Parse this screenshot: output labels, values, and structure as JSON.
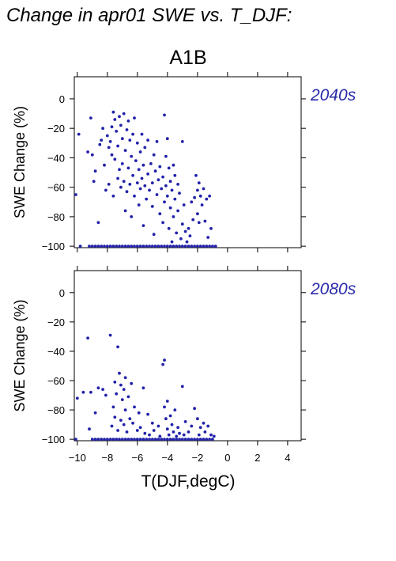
{
  "title": "Change in apr01 SWE vs. T_DJF:",
  "subtitle": "A1B",
  "xlabel": "T(DJF,degC)",
  "ylabel": "SWE Change (%)",
  "point_color": "#2222aa",
  "label_color": "#2a2aaa",
  "chart_data": [
    {
      "type": "scatter",
      "period_label": "2040s",
      "xlim": [
        -10.2,
        4.9
      ],
      "ylim": [
        -101,
        15
      ],
      "xticks": [
        -10,
        -8,
        -6,
        -4,
        -2,
        0,
        2,
        4
      ],
      "yticks": [
        0,
        -20,
        -40,
        -60,
        -80,
        -100
      ],
      "points": [
        [
          -9.8,
          -100
        ],
        [
          -9.2,
          -100
        ],
        [
          -9.0,
          -100
        ],
        [
          -8.8,
          -100
        ],
        [
          -8.6,
          -100
        ],
        [
          -8.4,
          -100
        ],
        [
          -8.2,
          -100
        ],
        [
          -8.0,
          -100
        ],
        [
          -7.8,
          -100
        ],
        [
          -7.6,
          -100
        ],
        [
          -7.4,
          -100
        ],
        [
          -7.2,
          -100
        ],
        [
          -7.0,
          -100
        ],
        [
          -6.8,
          -100
        ],
        [
          -6.6,
          -100
        ],
        [
          -6.4,
          -100
        ],
        [
          -6.2,
          -100
        ],
        [
          -6.0,
          -100
        ],
        [
          -5.8,
          -100
        ],
        [
          -5.6,
          -100
        ],
        [
          -5.4,
          -100
        ],
        [
          -5.2,
          -100
        ],
        [
          -5.0,
          -100
        ],
        [
          -4.8,
          -100
        ],
        [
          -4.6,
          -100
        ],
        [
          -4.4,
          -100
        ],
        [
          -4.2,
          -100
        ],
        [
          -4.0,
          -100
        ],
        [
          -3.8,
          -100
        ],
        [
          -3.6,
          -100
        ],
        [
          -3.4,
          -100
        ],
        [
          -3.2,
          -100
        ],
        [
          -3.0,
          -100
        ],
        [
          -2.8,
          -100
        ],
        [
          -2.6,
          -100
        ],
        [
          -2.4,
          -100
        ],
        [
          -2.2,
          -100
        ],
        [
          -2.0,
          -100
        ],
        [
          -1.8,
          -100
        ],
        [
          -1.6,
          -100
        ],
        [
          -1.4,
          -100
        ],
        [
          -1.2,
          -100
        ],
        [
          -1.0,
          -100
        ],
        [
          -0.8,
          -100
        ],
        [
          -10.1,
          -65
        ],
        [
          -9.9,
          -24
        ],
        [
          -9.3,
          -36
        ],
        [
          -9.1,
          -13
        ],
        [
          -9.0,
          -38
        ],
        [
          -8.9,
          -56
        ],
        [
          -8.8,
          -49
        ],
        [
          -8.6,
          -84
        ],
        [
          -8.5,
          -31
        ],
        [
          -8.4,
          -28
        ],
        [
          -8.3,
          -20
        ],
        [
          -8.2,
          -45
        ],
        [
          -8.1,
          -62
        ],
        [
          -8.0,
          -25
        ],
        [
          -7.9,
          -33
        ],
        [
          -7.9,
          -58
        ],
        [
          -7.8,
          -29
        ],
        [
          -7.7,
          -19
        ],
        [
          -7.7,
          -38
        ],
        [
          -7.6,
          -66
        ],
        [
          -7.6,
          -9
        ],
        [
          -7.5,
          -14
        ],
        [
          -7.5,
          -41
        ],
        [
          -7.4,
          -22
        ],
        [
          -7.3,
          -32
        ],
        [
          -7.3,
          -54
        ],
        [
          -7.2,
          -12
        ],
        [
          -7.2,
          -48
        ],
        [
          -7.1,
          -18
        ],
        [
          -7.1,
          -60
        ],
        [
          -7.0,
          -27
        ],
        [
          -7.0,
          -44
        ],
        [
          -6.9,
          -10
        ],
        [
          -6.9,
          -56
        ],
        [
          -6.8,
          -35
        ],
        [
          -6.8,
          -76
        ],
        [
          -6.7,
          -21
        ],
        [
          -6.7,
          -63
        ],
        [
          -6.6,
          -15
        ],
        [
          -6.6,
          -47
        ],
        [
          -6.5,
          -28
        ],
        [
          -6.5,
          -58
        ],
        [
          -6.4,
          -39
        ],
        [
          -6.4,
          -80
        ],
        [
          -6.3,
          -24
        ],
        [
          -6.3,
          -52
        ],
        [
          -6.2,
          -13
        ],
        [
          -6.2,
          -66
        ],
        [
          -6.1,
          -42
        ],
        [
          -6.0,
          -30
        ],
        [
          -6.0,
          -57
        ],
        [
          -5.9,
          -48
        ],
        [
          -5.9,
          -72
        ],
        [
          -5.8,
          -36
        ],
        [
          -5.8,
          -61
        ],
        [
          -5.7,
          -24
        ],
        [
          -5.7,
          -54
        ],
        [
          -5.6,
          -45
        ],
        [
          -5.6,
          -86
        ],
        [
          -5.5,
          -59
        ],
        [
          -5.5,
          -33
        ],
        [
          -5.4,
          -68
        ],
        [
          -5.3,
          -51
        ],
        [
          -5.3,
          -28
        ],
        [
          -5.2,
          -62
        ],
        [
          -5.1,
          -44
        ],
        [
          -5.0,
          -73
        ],
        [
          -5.0,
          -57
        ],
        [
          -4.9,
          -38
        ],
        [
          -4.9,
          -92
        ],
        [
          -4.8,
          -49
        ],
        [
          -4.7,
          -65
        ],
        [
          -4.7,
          -29
        ],
        [
          -4.6,
          -55
        ],
        [
          -4.5,
          -46
        ],
        [
          -4.5,
          -78
        ],
        [
          -4.4,
          -61
        ],
        [
          -4.3,
          -53
        ],
        [
          -4.3,
          -84
        ],
        [
          -4.2,
          -11
        ],
        [
          -4.2,
          -70
        ],
        [
          -4.1,
          -39
        ],
        [
          -4.1,
          -59
        ],
        [
          -4.0,
          -27
        ],
        [
          -4.0,
          -66
        ],
        [
          -3.9,
          -47
        ],
        [
          -3.9,
          -88
        ],
        [
          -3.8,
          -56
        ],
        [
          -3.8,
          -74
        ],
        [
          -3.7,
          -62
        ],
        [
          -3.7,
          -97
        ],
        [
          -3.6,
          -45
        ],
        [
          -3.6,
          -80
        ],
        [
          -3.5,
          -68
        ],
        [
          -3.5,
          -52
        ],
        [
          -3.4,
          -91
        ],
        [
          -3.3,
          -58
        ],
        [
          -3.3,
          -76
        ],
        [
          -3.2,
          -64
        ],
        [
          -3.1,
          -95
        ],
        [
          -3.0,
          -29
        ],
        [
          -3.0,
          -85
        ],
        [
          -2.9,
          -72
        ],
        [
          -2.8,
          -90
        ],
        [
          -2.7,
          -97
        ],
        [
          -2.6,
          -88
        ],
        [
          -2.5,
          -93
        ],
        [
          -2.4,
          -70
        ],
        [
          -2.3,
          -82
        ],
        [
          -2.2,
          -67
        ],
        [
          -2.1,
          -52
        ],
        [
          -2.0,
          -62
        ],
        [
          -2.0,
          -78
        ],
        [
          -1.9,
          -57
        ],
        [
          -1.9,
          -84
        ],
        [
          -1.8,
          -66
        ],
        [
          -1.7,
          -72
        ],
        [
          -1.6,
          -61
        ],
        [
          -1.5,
          -83
        ],
        [
          -1.4,
          -68
        ],
        [
          -1.3,
          -94
        ],
        [
          -1.2,
          -66
        ],
        [
          -1.1,
          -88
        ]
      ]
    },
    {
      "type": "scatter",
      "period_label": "2080s",
      "xlim": [
        -10.2,
        4.9
      ],
      "ylim": [
        -101,
        15
      ],
      "xticks": [
        -10,
        -8,
        -6,
        -4,
        -2,
        0,
        2,
        4
      ],
      "yticks": [
        0,
        -20,
        -40,
        -60,
        -80,
        -100
      ],
      "points": [
        [
          -10.1,
          -100
        ],
        [
          -9.0,
          -100
        ],
        [
          -8.8,
          -100
        ],
        [
          -8.6,
          -100
        ],
        [
          -8.4,
          -100
        ],
        [
          -8.2,
          -100
        ],
        [
          -8.0,
          -100
        ],
        [
          -7.8,
          -100
        ],
        [
          -7.6,
          -100
        ],
        [
          -7.4,
          -100
        ],
        [
          -7.2,
          -100
        ],
        [
          -7.0,
          -100
        ],
        [
          -6.8,
          -100
        ],
        [
          -6.6,
          -100
        ],
        [
          -6.4,
          -100
        ],
        [
          -6.2,
          -100
        ],
        [
          -6.0,
          -100
        ],
        [
          -5.8,
          -100
        ],
        [
          -5.6,
          -100
        ],
        [
          -5.4,
          -100
        ],
        [
          -5.2,
          -100
        ],
        [
          -5.0,
          -100
        ],
        [
          -4.8,
          -100
        ],
        [
          -4.6,
          -100
        ],
        [
          -4.4,
          -100
        ],
        [
          -4.2,
          -100
        ],
        [
          -4.0,
          -100
        ],
        [
          -3.8,
          -100
        ],
        [
          -3.6,
          -100
        ],
        [
          -3.4,
          -100
        ],
        [
          -3.2,
          -100
        ],
        [
          -3.0,
          -100
        ],
        [
          -2.8,
          -100
        ],
        [
          -2.6,
          -100
        ],
        [
          -2.4,
          -100
        ],
        [
          -2.2,
          -100
        ],
        [
          -2.0,
          -100
        ],
        [
          -1.8,
          -100
        ],
        [
          -1.6,
          -100
        ],
        [
          -1.4,
          -100
        ],
        [
          -1.2,
          -100
        ],
        [
          -1.0,
          -100
        ],
        [
          -10.0,
          -72
        ],
        [
          -9.6,
          -68
        ],
        [
          -9.3,
          -31
        ],
        [
          -9.2,
          -93
        ],
        [
          -9.1,
          -68
        ],
        [
          -8.8,
          -82
        ],
        [
          -8.6,
          -65
        ],
        [
          -8.3,
          -66
        ],
        [
          -8.1,
          -70
        ],
        [
          -7.8,
          -29
        ],
        [
          -7.7,
          -91
        ],
        [
          -7.6,
          -78
        ],
        [
          -7.5,
          -61
        ],
        [
          -7.5,
          -85
        ],
        [
          -7.4,
          -69
        ],
        [
          -7.3,
          -37
        ],
        [
          -7.3,
          -94
        ],
        [
          -7.2,
          -55
        ],
        [
          -7.1,
          -63
        ],
        [
          -7.1,
          -87
        ],
        [
          -7.0,
          -73
        ],
        [
          -6.9,
          -66
        ],
        [
          -6.9,
          -90
        ],
        [
          -6.8,
          -58
        ],
        [
          -6.8,
          -80
        ],
        [
          -6.7,
          -95
        ],
        [
          -6.6,
          -71
        ],
        [
          -6.5,
          -86
        ],
        [
          -6.4,
          -62
        ],
        [
          -6.3,
          -89
        ],
        [
          -6.2,
          -78
        ],
        [
          -6.0,
          -94
        ],
        [
          -5.9,
          -82
        ],
        [
          -5.8,
          -92
        ],
        [
          -5.6,
          -65
        ],
        [
          -5.5,
          -96
        ],
        [
          -5.3,
          -83
        ],
        [
          -5.2,
          -97
        ],
        [
          -5.0,
          -89
        ],
        [
          -4.9,
          -94
        ],
        [
          -4.6,
          -91
        ],
        [
          -4.5,
          -98
        ],
        [
          -4.3,
          -49
        ],
        [
          -4.2,
          -46
        ],
        [
          -4.2,
          -78
        ],
        [
          -4.1,
          -86
        ],
        [
          -4.0,
          -93
        ],
        [
          -4.0,
          -74
        ],
        [
          -3.9,
          -97
        ],
        [
          -3.8,
          -84
        ],
        [
          -3.7,
          -90
        ],
        [
          -3.6,
          -95
        ],
        [
          -3.5,
          -80
        ],
        [
          -3.4,
          -98
        ],
        [
          -3.3,
          -92
        ],
        [
          -3.2,
          -96
        ],
        [
          -3.0,
          -64
        ],
        [
          -2.9,
          -97
        ],
        [
          -2.8,
          -88
        ],
        [
          -2.6,
          -95
        ],
        [
          -2.4,
          -91
        ],
        [
          -2.2,
          -79
        ],
        [
          -2.0,
          -86
        ],
        [
          -1.9,
          -97
        ],
        [
          -1.8,
          -92
        ],
        [
          -1.6,
          -89
        ],
        [
          -1.5,
          -95
        ],
        [
          -1.3,
          -91
        ],
        [
          -1.1,
          -97
        ],
        [
          -0.9,
          -98
        ]
      ]
    }
  ]
}
